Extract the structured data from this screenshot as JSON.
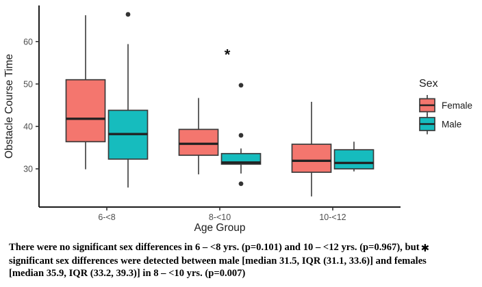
{
  "chart_data": {
    "type": "boxplot",
    "xlabel": "Age Group",
    "ylabel": "Obstacle Course Time",
    "ylim": [
      21,
      68.5
    ],
    "yticks": [
      30,
      40,
      50,
      60
    ],
    "categories": [
      "6-<8",
      "8-<10",
      "10-<12"
    ],
    "grid": "off",
    "legend": {
      "title": "Sex",
      "position": "right",
      "entries": [
        {
          "label": "Female",
          "color": "#F4766E"
        },
        {
          "label": "Male",
          "color": "#16BCBE"
        }
      ]
    },
    "series": [
      {
        "name": "Female",
        "color": "#F4766E",
        "boxes": [
          {
            "category": "6-<8",
            "low": 29.9,
            "q1": 36.4,
            "median": 41.8,
            "q3": 51.0,
            "high": 66.2,
            "outliers": []
          },
          {
            "category": "8-<10",
            "low": 28.7,
            "q1": 33.2,
            "median": 35.9,
            "q3": 39.3,
            "high": 46.7,
            "outliers": []
          },
          {
            "category": "10-<12",
            "low": 23.5,
            "q1": 29.2,
            "median": 31.9,
            "q3": 35.8,
            "high": 45.8,
            "outliers": []
          }
        ]
      },
      {
        "name": "Male",
        "color": "#16BCBE",
        "boxes": [
          {
            "category": "6-<8",
            "low": 25.6,
            "q1": 32.3,
            "median": 38.2,
            "q3": 43.8,
            "high": 59.4,
            "outliers": [
              66.4
            ]
          },
          {
            "category": "8-<10",
            "low": 28.9,
            "q1": 31.1,
            "median": 31.5,
            "q3": 33.6,
            "high": 34.8,
            "outliers": [
              49.7,
              37.9,
              26.5
            ]
          },
          {
            "category": "10-<12",
            "low": 29.4,
            "q1": 30.0,
            "median": 31.4,
            "q3": 34.5,
            "high": 36.4,
            "outliers": []
          }
        ]
      }
    ],
    "annotation": {
      "text": "*",
      "category": "8-<10",
      "value": 57.5
    }
  },
  "caption": {
    "line1": "There were no significant sex differences in 6 – <8 yrs. (p=0.101) and 10 – <12 yrs. (p=0.967), but",
    "asterisk": "✱",
    "line2": "significant sex differences were detected between male [median 31.5, IQR (31.1, 33.6)] and females",
    "line3": "[median 35.9, IQR (33.2, 39.3)] in 8 – <10 yrs. (p=0.007)"
  }
}
